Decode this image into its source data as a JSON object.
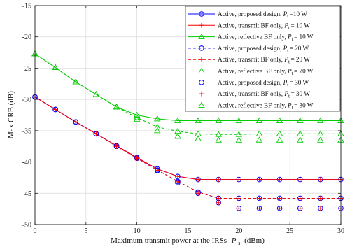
{
  "chart_data": {
    "type": "line",
    "xlabel": "Maximum transmit power at the IRSs",
    "xlabel_symbol": "P",
    "xlabel_sub": "s",
    "xlabel_unit": "(dBm)",
    "ylabel": "Max CRB (dB)",
    "xlim": [
      0,
      30
    ],
    "ylim": [
      -50,
      -15
    ],
    "xticks": [
      0,
      5,
      10,
      15,
      20,
      25,
      30
    ],
    "yticks": [
      -50,
      -45,
      -40,
      -35,
      -30,
      -25,
      -20,
      -15
    ],
    "grid": true,
    "legend_position": "top-right",
    "x": [
      0,
      2,
      4,
      6,
      8,
      10,
      12,
      14,
      16,
      18,
      20,
      22,
      24,
      26,
      28,
      30
    ],
    "series": [
      {
        "name": "Active, proposed design, P_t =10 W",
        "legend_prefix": "Active, proposed design,",
        "legend_suffix": "=10 W",
        "color": "#0000ff",
        "dash": "solid",
        "marker": "circle",
        "values": [
          -29.6,
          -31.6,
          -33.6,
          -35.5,
          -37.4,
          -39.3,
          -41.1,
          -42.3,
          -42.8,
          -42.8,
          -42.8,
          -42.8,
          -42.8,
          -42.8,
          -42.8,
          -42.8
        ]
      },
      {
        "name": "Active, transmit BF only, P_t = 10 W",
        "legend_prefix": "Active, transmit BF only,",
        "legend_suffix": "= 10 W",
        "color": "#ff0000",
        "dash": "solid",
        "marker": "plus",
        "values": [
          -29.6,
          -31.6,
          -33.6,
          -35.5,
          -37.4,
          -39.3,
          -41.1,
          -42.3,
          -42.8,
          -42.8,
          -42.8,
          -42.8,
          -42.8,
          -42.8,
          -42.8,
          -42.8
        ]
      },
      {
        "name": "Active, reflective BF only, P_t = 10 W",
        "legend_prefix": "Active, reflective BF only,",
        "legend_suffix": "= 10 W",
        "color": "#00cc00",
        "dash": "solid",
        "marker": "triangle",
        "values": [
          -22.7,
          -24.9,
          -27.2,
          -29.2,
          -31.2,
          -32.5,
          -33.1,
          -33.4,
          -33.4,
          -33.4,
          -33.4,
          -33.4,
          -33.4,
          -33.4,
          -33.4,
          -33.4
        ]
      },
      {
        "name": "Active, proposed design, P_t = 20 W",
        "legend_prefix": "Active, proposed design,",
        "legend_suffix": "= 20 W",
        "color": "#0000ff",
        "dash": "dashed",
        "marker": "circle",
        "values": [
          -29.6,
          -31.6,
          -33.6,
          -35.5,
          -37.5,
          -39.4,
          -41.3,
          -43.1,
          -44.8,
          -45.8,
          -45.8,
          -45.8,
          -45.8,
          -45.8,
          -45.8,
          -45.8
        ]
      },
      {
        "name": "Active, transmit BF only, P_t = 20 W",
        "legend_prefix": "Active, transmit BF only,",
        "legend_suffix": "= 20 W",
        "color": "#ff0000",
        "dash": "dashed",
        "marker": "plus",
        "values": [
          -29.6,
          -31.6,
          -33.6,
          -35.5,
          -37.5,
          -39.4,
          -41.3,
          -43.1,
          -44.8,
          -45.8,
          -45.8,
          -45.8,
          -45.8,
          -45.8,
          -45.8,
          -45.8
        ]
      },
      {
        "name": "Active, reflective BF only, P_t = 20 W",
        "legend_prefix": "Active, reflective BF only,",
        "legend_suffix": "= 20 W",
        "color": "#00cc00",
        "dash": "dashed",
        "marker": "triangle",
        "values": [
          -22.7,
          -24.9,
          -27.2,
          -29.2,
          -31.2,
          -32.9,
          -34.4,
          -35.1,
          -35.5,
          -35.6,
          -35.6,
          -35.5,
          -35.5,
          -35.5,
          -35.5,
          -35.5
        ]
      },
      {
        "name": "Active, proposed design, P_t = 30 W",
        "legend_prefix": "Active, proposed design,",
        "legend_suffix": "= 30 W",
        "color": "#0000ff",
        "dash": "none",
        "marker": "circle",
        "values": [
          -29.6,
          -31.6,
          -33.6,
          -35.5,
          -37.5,
          -39.4,
          -41.4,
          -43.3,
          -45.0,
          -46.5,
          -47.4,
          -47.4,
          -47.4,
          -47.4,
          -47.4,
          -47.4
        ]
      },
      {
        "name": "Active, transmit BF only, P_t = 30 W",
        "legend_prefix": "Active, transmit BF only,",
        "legend_suffix": "= 30 W",
        "color": "#ff0000",
        "dash": "none",
        "marker": "plus",
        "values": [
          -29.6,
          -31.6,
          -33.6,
          -35.5,
          -37.5,
          -39.4,
          -41.4,
          -43.3,
          -45.0,
          -46.5,
          -47.4,
          -47.4,
          -47.4,
          -47.4,
          -47.4,
          -47.4
        ]
      },
      {
        "name": "Active, reflective BF only, P_t = 30 W",
        "legend_prefix": "Active, reflective BF only,",
        "legend_suffix": "= 30 W",
        "color": "#00cc00",
        "dash": "none",
        "marker": "triangle",
        "values": [
          -22.7,
          -24.9,
          -27.2,
          -29.2,
          -31.2,
          -33.2,
          -35.0,
          -35.9,
          -36.3,
          -36.5,
          -36.5,
          -36.5,
          -36.5,
          -36.5,
          -36.5,
          -36.5
        ]
      }
    ]
  }
}
